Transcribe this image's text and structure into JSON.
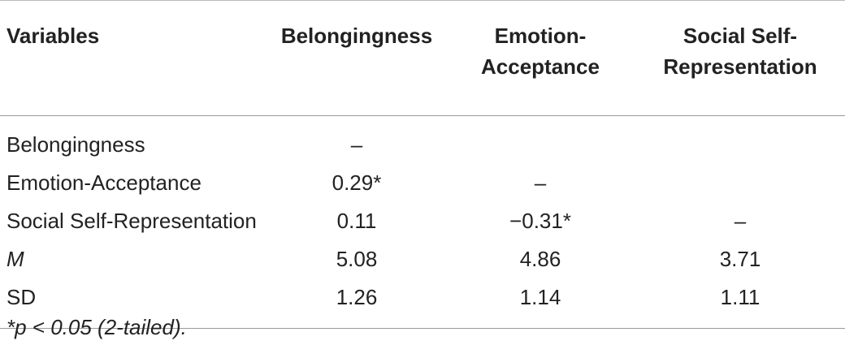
{
  "table": {
    "header": [
      "Variables",
      "Belongingness",
      "Emotion-Acceptance",
      "Social Self-Representation"
    ],
    "rows": [
      [
        "Belongingness",
        "–"
      ],
      [
        "Emotion-Acceptance",
        "0.29*",
        "–"
      ],
      [
        "Social Self-Representation",
        "0.11",
        "−0.31*",
        "–"
      ],
      [
        "M",
        "5.08",
        "4.86",
        "3.71"
      ],
      [
        "SD",
        "1.26",
        "1.14",
        "1.11"
      ]
    ]
  },
  "footnote": "*p < 0.05 (2-tailed)."
}
